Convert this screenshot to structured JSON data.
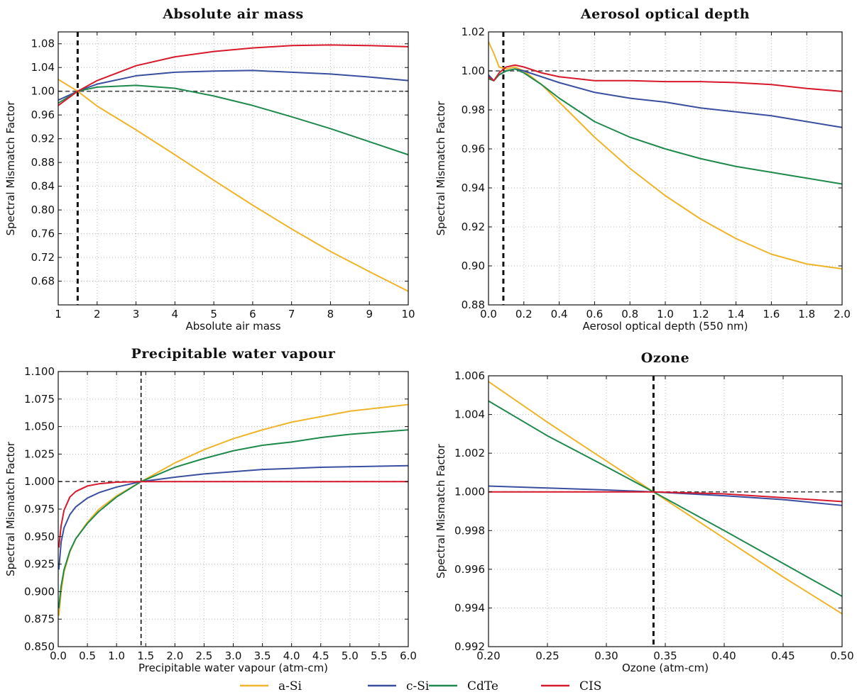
{
  "legend": {
    "placement": "bottom-center",
    "entries": [
      {
        "name": "a-Si",
        "color": "#f0b429"
      },
      {
        "name": "c-Si",
        "color": "#3a4fa0"
      },
      {
        "name": "CdTe",
        "color": "#1f8a4c"
      },
      {
        "name": "CIS",
        "color": "#d7192c"
      }
    ]
  },
  "chart_data": [
    {
      "type": "line",
      "title": "Absolute air mass",
      "xlabel": "Absolute air mass",
      "ylabel": "Spectral Mismatch Factor",
      "xlim": [
        1,
        10
      ],
      "ylim": [
        0.64,
        1.1
      ],
      "xticks": [
        1,
        2,
        3,
        4,
        5,
        6,
        7,
        8,
        9,
        10
      ],
      "xtick_labels": [
        "1",
        "2",
        "3",
        "4",
        "5",
        "6",
        "7",
        "8",
        "9",
        "10"
      ],
      "yticks": [
        0.68,
        0.72,
        0.76,
        0.8,
        0.84,
        0.88,
        0.92,
        0.96,
        1.0,
        1.04,
        1.08
      ],
      "ytick_labels": [
        "0.68",
        "0.72",
        "0.76",
        "0.80",
        "0.84",
        "0.88",
        "0.92",
        "0.96",
        "1.00",
        "1.04",
        "1.08"
      ],
      "grid": true,
      "reference_hline": 1.0,
      "reference_vline": 1.5,
      "series": [
        {
          "name": "a-Si",
          "x": [
            1,
            1.5,
            2,
            3,
            4,
            5,
            6,
            7,
            8,
            9,
            10
          ],
          "y": [
            1.02,
            1.0,
            0.975,
            0.935,
            0.893,
            0.85,
            0.808,
            0.768,
            0.73,
            0.696,
            0.663
          ]
        },
        {
          "name": "c-Si",
          "x": [
            1,
            1.5,
            2,
            3,
            4,
            5,
            6,
            7,
            8,
            9,
            10
          ],
          "y": [
            0.985,
            1.0,
            1.012,
            1.026,
            1.032,
            1.034,
            1.035,
            1.032,
            1.029,
            1.024,
            1.018
          ]
        },
        {
          "name": "CdTe",
          "x": [
            1,
            1.5,
            2,
            3,
            4,
            5,
            6,
            7,
            8,
            9,
            10
          ],
          "y": [
            0.98,
            1.0,
            1.007,
            1.01,
            1.005,
            0.992,
            0.976,
            0.957,
            0.937,
            0.915,
            0.893
          ]
        },
        {
          "name": "CIS",
          "x": [
            1,
            1.5,
            2,
            3,
            4,
            5,
            6,
            7,
            8,
            9,
            10
          ],
          "y": [
            0.976,
            1.0,
            1.018,
            1.043,
            1.058,
            1.067,
            1.073,
            1.077,
            1.078,
            1.077,
            1.075
          ]
        }
      ]
    },
    {
      "type": "line",
      "title": "Aerosol optical depth",
      "xlabel": "Aerosol optical depth (550 nm)",
      "ylabel": "Spectral Mismatch Factor",
      "xlim": [
        0.0,
        2.0
      ],
      "ylim": [
        0.88,
        1.02
      ],
      "xticks": [
        0.0,
        0.2,
        0.4,
        0.6,
        0.8,
        1.0,
        1.2,
        1.4,
        1.6,
        1.8,
        2.0
      ],
      "xtick_labels": [
        "0.0",
        "0.2",
        "0.4",
        "0.6",
        "0.8",
        "1.0",
        "1.2",
        "1.4",
        "1.6",
        "1.8",
        "2.0"
      ],
      "yticks": [
        0.88,
        0.9,
        0.92,
        0.94,
        0.96,
        0.98,
        1.0,
        1.02
      ],
      "ytick_labels": [
        "0.88",
        "0.90",
        "0.92",
        "0.94",
        "0.96",
        "0.98",
        "1.00",
        "1.02"
      ],
      "grid": true,
      "reference_hline": 1.0,
      "reference_vline": 0.084,
      "series": [
        {
          "name": "a-Si",
          "x": [
            0.0,
            0.03,
            0.06,
            0.1,
            0.15,
            0.2,
            0.3,
            0.4,
            0.6,
            0.8,
            1.0,
            1.2,
            1.4,
            1.6,
            1.8,
            2.0
          ],
          "y": [
            1.015,
            1.009,
            1.002,
            1.001,
            1.002,
            1.0,
            0.993,
            0.984,
            0.966,
            0.95,
            0.936,
            0.924,
            0.914,
            0.906,
            0.901,
            0.8985
          ]
        },
        {
          "name": "c-Si",
          "x": [
            0.0,
            0.03,
            0.06,
            0.1,
            0.15,
            0.2,
            0.3,
            0.4,
            0.6,
            0.8,
            1.0,
            1.2,
            1.4,
            1.6,
            1.8,
            2.0
          ],
          "y": [
            0.998,
            0.995,
            0.998,
            1.0,
            1.001,
            1.0,
            0.997,
            0.994,
            0.989,
            0.986,
            0.984,
            0.981,
            0.979,
            0.977,
            0.974,
            0.971
          ]
        },
        {
          "name": "CdTe",
          "x": [
            0.0,
            0.03,
            0.06,
            0.1,
            0.15,
            0.2,
            0.3,
            0.4,
            0.6,
            0.8,
            1.0,
            1.2,
            1.4,
            1.6,
            1.8,
            2.0
          ],
          "y": [
            0.996,
            0.995,
            0.998,
            1.0,
            1.001,
            0.999,
            0.993,
            0.986,
            0.974,
            0.966,
            0.96,
            0.955,
            0.951,
            0.948,
            0.945,
            0.942
          ]
        },
        {
          "name": "CIS",
          "x": [
            0.0,
            0.03,
            0.06,
            0.1,
            0.15,
            0.2,
            0.3,
            0.4,
            0.6,
            0.8,
            1.0,
            1.2,
            1.4,
            1.6,
            1.8,
            2.0
          ],
          "y": [
            0.997,
            0.995,
            0.999,
            1.002,
            1.003,
            1.002,
            0.999,
            0.997,
            0.995,
            0.995,
            0.9945,
            0.9945,
            0.994,
            0.993,
            0.991,
            0.9895
          ]
        }
      ]
    },
    {
      "type": "line",
      "title": "Precipitable water vapour",
      "xlabel": "Precipitable water vapour (atm-cm)",
      "ylabel": "Spectral Mismatch Factor",
      "xlim": [
        0.0,
        6.0
      ],
      "ylim": [
        0.85,
        1.1
      ],
      "xticks": [
        0.0,
        0.5,
        1.0,
        1.5,
        2.0,
        2.5,
        3.0,
        3.5,
        4.0,
        4.5,
        5.0,
        5.5,
        6.0
      ],
      "xtick_labels": [
        "0.0",
        "0.5",
        "1.0",
        "1.5",
        "2.0",
        "2.5",
        "3.0",
        "3.5",
        "4.0",
        "4.5",
        "5.0",
        "5.5",
        "6.0"
      ],
      "yticks": [
        0.85,
        0.875,
        0.9,
        0.925,
        0.95,
        0.975,
        1.0,
        1.025,
        1.05,
        1.075,
        1.1
      ],
      "ytick_labels": [
        "0.850",
        "0.875",
        "0.900",
        "0.925",
        "0.950",
        "0.975",
        "1.000",
        "1.025",
        "1.050",
        "1.075",
        "1.100"
      ],
      "grid": true,
      "reference_hline": 1.0,
      "reference_vline": 1.42,
      "series": [
        {
          "name": "a-Si",
          "x": [
            0.01,
            0.05,
            0.1,
            0.2,
            0.3,
            0.5,
            0.7,
            1.0,
            1.42,
            2.0,
            2.5,
            3.0,
            3.5,
            4.0,
            4.5,
            5.0,
            5.5,
            6.0
          ],
          "y": [
            0.878,
            0.9,
            0.918,
            0.936,
            0.948,
            0.963,
            0.975,
            0.987,
            1.0,
            1.017,
            1.029,
            1.039,
            1.047,
            1.054,
            1.059,
            1.064,
            1.067,
            1.07
          ]
        },
        {
          "name": "c-Si",
          "x": [
            0.01,
            0.05,
            0.1,
            0.2,
            0.3,
            0.5,
            0.7,
            1.0,
            1.42,
            2.0,
            2.5,
            3.0,
            3.5,
            4.0,
            4.5,
            5.0,
            5.5,
            6.0
          ],
          "y": [
            0.92,
            0.945,
            0.958,
            0.97,
            0.977,
            0.985,
            0.99,
            0.995,
            1.0,
            1.004,
            1.007,
            1.009,
            1.011,
            1.012,
            1.013,
            1.0135,
            1.014,
            1.0145
          ]
        },
        {
          "name": "CdTe",
          "x": [
            0.01,
            0.05,
            0.1,
            0.2,
            0.3,
            0.5,
            0.7,
            1.0,
            1.42,
            2.0,
            2.5,
            3.0,
            3.5,
            4.0,
            4.5,
            5.0,
            5.5,
            6.0
          ],
          "y": [
            0.885,
            0.905,
            0.92,
            0.937,
            0.948,
            0.962,
            0.973,
            0.986,
            1.0,
            1.013,
            1.021,
            1.028,
            1.033,
            1.036,
            1.04,
            1.043,
            1.045,
            1.047
          ]
        },
        {
          "name": "CIS",
          "x": [
            0.01,
            0.05,
            0.1,
            0.2,
            0.3,
            0.5,
            0.7,
            1.0,
            1.42,
            2.0,
            3.0,
            4.0,
            5.0,
            6.0
          ],
          "y": [
            0.94,
            0.96,
            0.974,
            0.986,
            0.991,
            0.996,
            0.998,
            0.9995,
            1.0,
            1.0,
            1.0,
            1.0,
            1.0,
            1.0
          ]
        }
      ]
    },
    {
      "type": "line",
      "title": "Ozone",
      "xlabel": "Ozone (atm-cm)",
      "ylabel": "Spectral Mismatch Factor",
      "xlim": [
        0.2,
        0.5
      ],
      "ylim": [
        0.992,
        1.006
      ],
      "xticks": [
        0.2,
        0.25,
        0.3,
        0.35,
        0.4,
        0.45,
        0.5
      ],
      "xtick_labels": [
        "0.20",
        "0.25",
        "0.30",
        "0.35",
        "0.40",
        "0.45",
        "0.50"
      ],
      "yticks": [
        0.992,
        0.994,
        0.996,
        0.998,
        1.0,
        1.002,
        1.004,
        1.006
      ],
      "ytick_labels": [
        "0.992",
        "0.994",
        "0.996",
        "0.998",
        "1.000",
        "1.002",
        "1.004",
        "1.006"
      ],
      "grid": true,
      "reference_hline": 1.0,
      "reference_vline": 0.34,
      "series": [
        {
          "name": "a-Si",
          "x": [
            0.2,
            0.25,
            0.3,
            0.34,
            0.4,
            0.45,
            0.5
          ],
          "y": [
            1.0057,
            1.0036,
            1.0016,
            1.0,
            0.9976,
            0.9956,
            0.9937
          ]
        },
        {
          "name": "c-Si",
          "x": [
            0.2,
            0.25,
            0.3,
            0.34,
            0.4,
            0.45,
            0.5
          ],
          "y": [
            1.0003,
            1.0002,
            1.0001,
            1.0,
            0.9998,
            0.9996,
            0.9993
          ]
        },
        {
          "name": "CdTe",
          "x": [
            0.2,
            0.25,
            0.3,
            0.34,
            0.4,
            0.45,
            0.5
          ],
          "y": [
            1.0047,
            1.0029,
            1.0013,
            1.0,
            0.998,
            0.9963,
            0.9946
          ]
        },
        {
          "name": "CIS",
          "x": [
            0.2,
            0.25,
            0.3,
            0.34,
            0.4,
            0.45,
            0.5
          ],
          "y": [
            1.0,
            1.0,
            1.0,
            1.0,
            0.9999,
            0.9997,
            0.9995
          ]
        }
      ]
    }
  ]
}
